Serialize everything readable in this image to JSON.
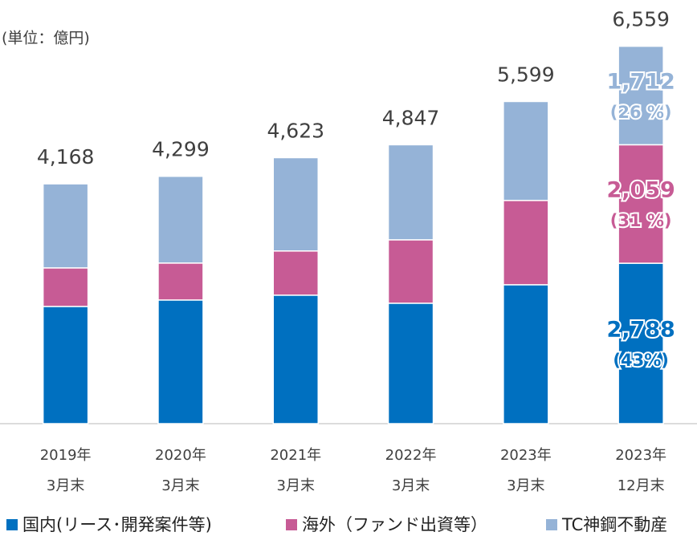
{
  "chart_data": {
    "type": "stacked_bar",
    "unit_label": "(単位：億円)",
    "categories": [
      [
        "2019年",
        "3月末"
      ],
      [
        "2020年",
        "3月末"
      ],
      [
        "2021年",
        "3月末"
      ],
      [
        "2022年",
        "3月末"
      ],
      [
        "2023年",
        "3月末"
      ],
      [
        "2023年",
        "12月末"
      ]
    ],
    "total_labels": [
      "4,168",
      "4,299",
      "4,623",
      "4,847",
      "5,599",
      "6,559"
    ],
    "series": [
      {
        "name": "国内(リース･開発案件等)",
        "color": "#0070c0",
        "values": [
          2037,
          2149,
          2233,
          2093,
          2414,
          2788
        ],
        "value_labels": [
          null,
          null,
          null,
          null,
          null,
          "2,788"
        ],
        "share_labels": [
          null,
          null,
          null,
          null,
          null,
          "(43%)"
        ]
      },
      {
        "name": "海外（ファンド出資等）",
        "color": "#c75b95",
        "values": [
          670,
          642,
          768,
          1102,
          1465,
          2059
        ],
        "value_labels": [
          null,
          null,
          null,
          null,
          null,
          "2,059"
        ],
        "share_labels": [
          null,
          null,
          null,
          null,
          null,
          "(31 %)"
        ]
      },
      {
        "name": "TC神鋼不動産",
        "color": "#95b3d7",
        "values": [
          1461,
          1508,
          1622,
          1652,
          1720,
          1712
        ],
        "value_labels": [
          null,
          null,
          null,
          null,
          null,
          "1,712"
        ],
        "share_labels": [
          null,
          null,
          null,
          null,
          null,
          "(26 %)"
        ]
      }
    ],
    "ylim": [
      0,
      7000
    ]
  }
}
